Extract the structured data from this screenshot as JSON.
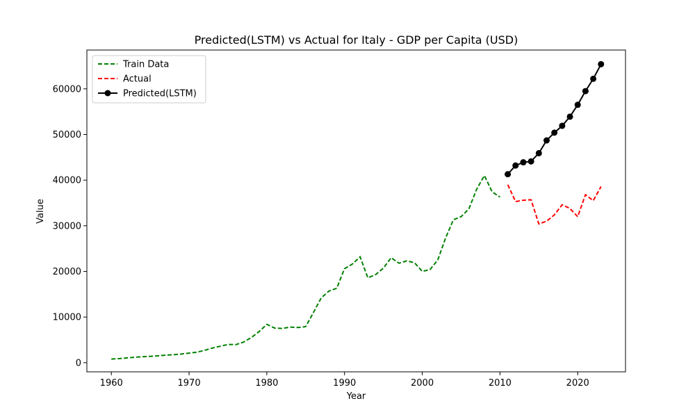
{
  "chart_data": {
    "type": "line",
    "title": "Predicted(LSTM) vs Actual for Italy - GDP per Capita (USD)",
    "xlabel": "Year",
    "ylabel": "Value",
    "xlim": [
      1956.85,
      2026.15
    ],
    "ylim": [
      -2000,
      68500
    ],
    "xticks": [
      1960,
      1970,
      1980,
      1990,
      2000,
      2010,
      2020
    ],
    "yticks": [
      0,
      10000,
      20000,
      30000,
      40000,
      50000,
      60000
    ],
    "grid": false,
    "legend_position": "top-left",
    "colors": {
      "train": "#008000",
      "actual": "#ff0000",
      "predicted": "#000000"
    },
    "series": [
      {
        "name": "Train Data",
        "style": "dashed",
        "color": "#008000",
        "x": [
          1960,
          1961,
          1962,
          1963,
          1964,
          1965,
          1966,
          1967,
          1968,
          1969,
          1970,
          1971,
          1972,
          1973,
          1974,
          1975,
          1976,
          1977,
          1978,
          1979,
          1980,
          1981,
          1982,
          1983,
          1984,
          1985,
          1986,
          1987,
          1988,
          1989,
          1990,
          1991,
          1992,
          1993,
          1994,
          1995,
          1996,
          1997,
          1998,
          1999,
          2000,
          2001,
          2002,
          2003,
          2004,
          2005,
          2006,
          2007,
          2008,
          2009,
          2010
        ],
        "y": [
          800,
          900,
          1050,
          1200,
          1300,
          1400,
          1500,
          1650,
          1750,
          1900,
          2100,
          2300,
          2700,
          3200,
          3600,
          4000,
          3950,
          4500,
          5500,
          6800,
          8400,
          7600,
          7500,
          7800,
          7700,
          7900,
          11000,
          14200,
          15700,
          16300,
          20600,
          21600,
          23200,
          18600,
          19300,
          20700,
          23000,
          21800,
          22300,
          21900,
          20000,
          20400,
          22500,
          27300,
          31300,
          32000,
          33700,
          38000,
          41000,
          37400,
          36300
        ]
      },
      {
        "name": "Actual",
        "style": "dashed",
        "color": "#ff0000",
        "x": [
          2011,
          2012,
          2013,
          2014,
          2015,
          2016,
          2017,
          2018,
          2019,
          2020,
          2021,
          2022,
          2023
        ],
        "y": [
          39000,
          35300,
          35600,
          35700,
          30400,
          31000,
          32400,
          34600,
          33800,
          32000,
          36800,
          35500,
          38600
        ]
      },
      {
        "name": "Predicted(LSTM)",
        "style": "solid-marker",
        "color": "#000000",
        "x": [
          2011,
          2012,
          2013,
          2014,
          2015,
          2016,
          2017,
          2018,
          2019,
          2020,
          2021,
          2022,
          2023
        ],
        "y": [
          41300,
          43200,
          43900,
          44100,
          45900,
          48700,
          50400,
          51900,
          53900,
          56500,
          59500,
          62200,
          65400
        ]
      }
    ]
  }
}
